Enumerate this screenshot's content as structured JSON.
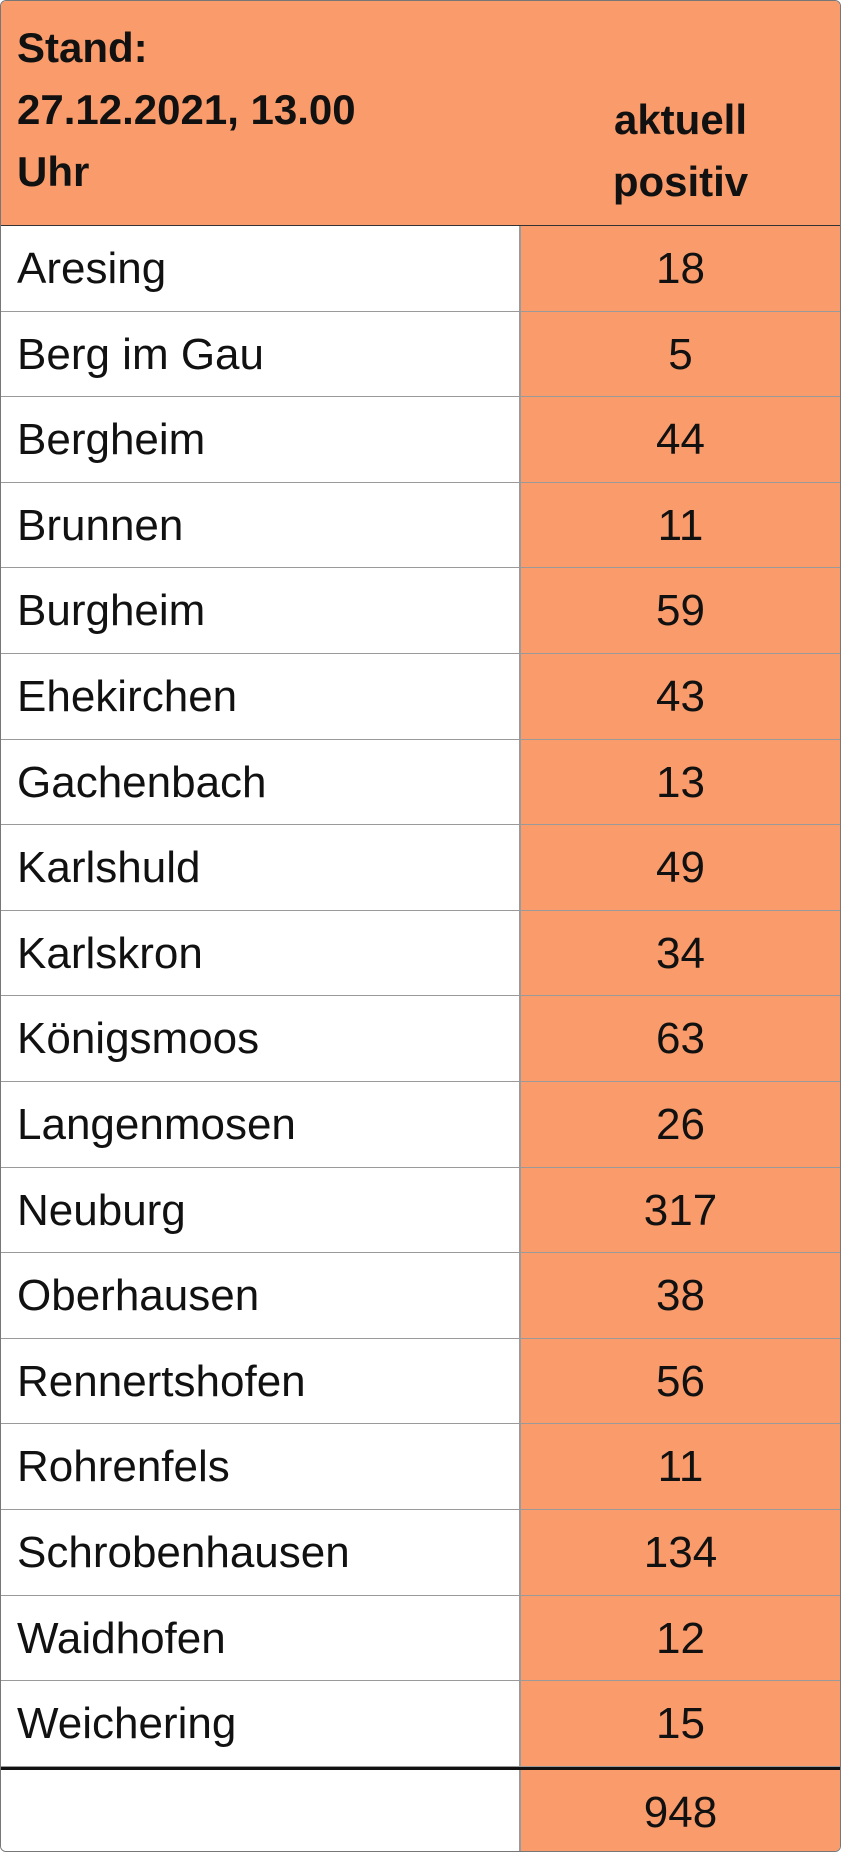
{
  "header": {
    "title_lines": [
      "Stand:",
      "27.12.2021, 13.00",
      "Uhr"
    ],
    "column_lines": [
      "aktuell",
      "positiv"
    ]
  },
  "table": {
    "rows": [
      [
        "Aresing",
        18
      ],
      [
        "Berg im Gau",
        5
      ],
      [
        "Bergheim",
        44
      ],
      [
        "Brunnen",
        11
      ],
      [
        "Burgheim",
        59
      ],
      [
        "Ehekirchen",
        43
      ],
      [
        "Gachenbach",
        13
      ],
      [
        "Karlshuld",
        49
      ],
      [
        "Karlskron",
        34
      ],
      [
        "Königsmoos",
        63
      ],
      [
        "Langenmosen",
        26
      ],
      [
        "Neuburg",
        317
      ],
      [
        "Oberhausen",
        38
      ],
      [
        "Rennertshofen",
        56
      ],
      [
        "Rohrenfels",
        11
      ],
      [
        "Schrobenhausen",
        134
      ],
      [
        "Waidhofen",
        12
      ],
      [
        "Weichering",
        15
      ]
    ],
    "total": 948
  }
}
